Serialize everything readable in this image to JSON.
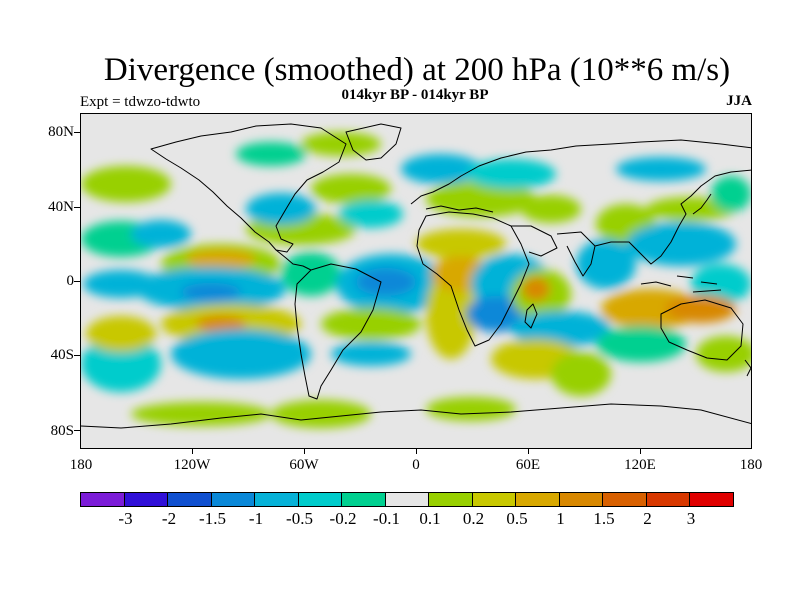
{
  "header": {
    "title": "Divergence (smoothed) at 200 hPa (10**6 m/s)",
    "subtitle": "014kyr BP - 014kyr BP",
    "left_label": "Expt = tdwzo-tdwto",
    "right_label": "JJA"
  },
  "map": {
    "projection": "cylindrical equidistant",
    "lat_labels": [
      "80N",
      "40N",
      "0",
      "40S",
      "80S"
    ],
    "lon_labels": [
      "180",
      "120W",
      "60W",
      "0",
      "60E",
      "120E",
      "180"
    ]
  },
  "colorbar": {
    "colors": [
      "#7c1cd8",
      "#3010d8",
      "#1050d0",
      "#0a88d8",
      "#06b2d8",
      "#00cccc",
      "#00d090",
      "#e6e6e6",
      "#98d000",
      "#c8c800",
      "#d8a800",
      "#d88800",
      "#d86000",
      "#d83800",
      "#e00000"
    ],
    "labels": [
      "-3",
      "-2",
      "-1.5",
      "-1",
      "-0.5",
      "-0.2",
      "-0.1",
      "0.1",
      "0.2",
      "0.5",
      "1",
      "1.5",
      "2",
      "3"
    ]
  },
  "colors": {
    "background": "#ffffff",
    "neutral": "#e6e6e6",
    "coastline": "#000000"
  }
}
